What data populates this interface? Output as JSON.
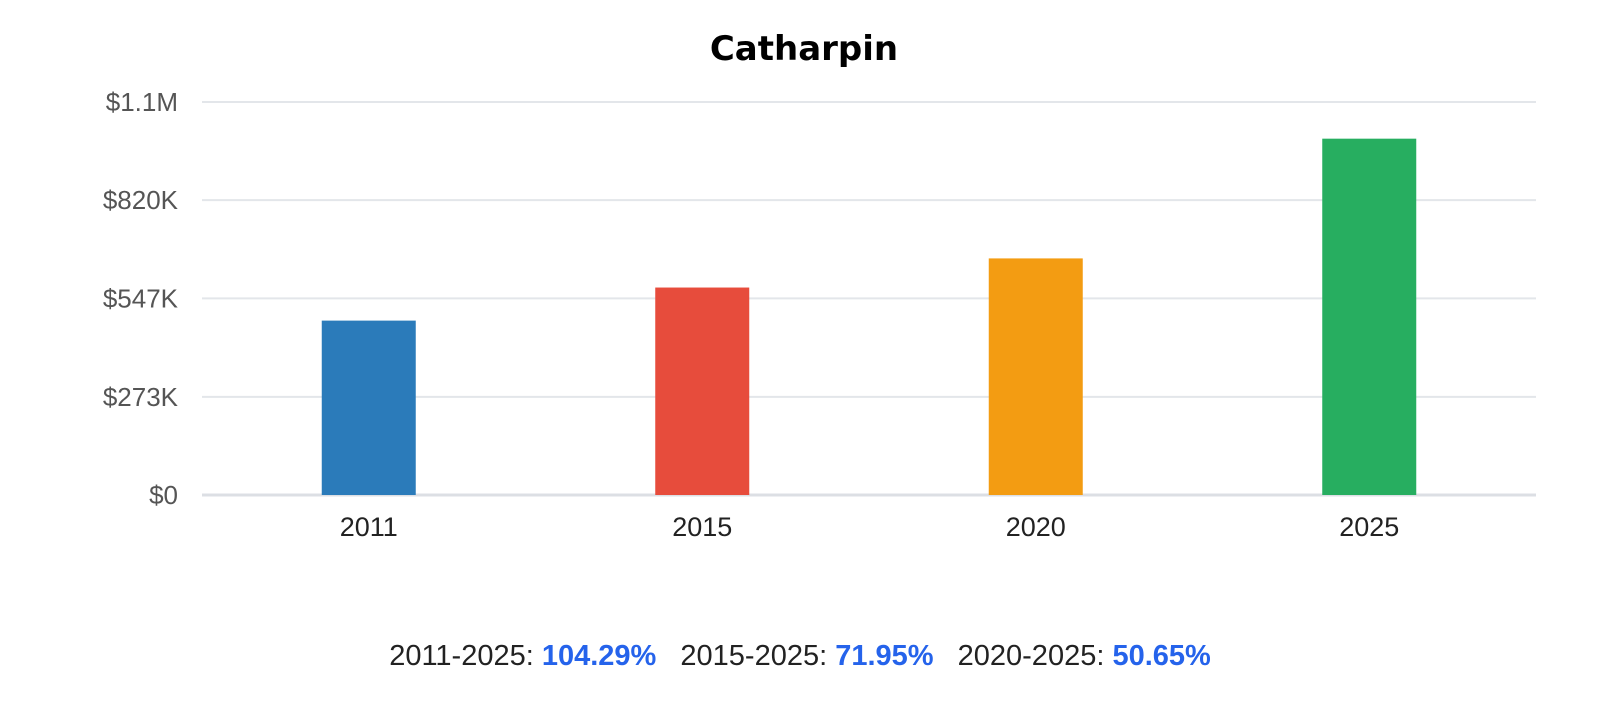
{
  "chart_data": {
    "type": "bar",
    "title": "Catharpin",
    "categories": [
      "2011",
      "2015",
      "2020",
      "2025"
    ],
    "values": [
      485000,
      577000,
      658000,
      991000
    ],
    "colors": [
      "#2b7bba",
      "#e74c3c",
      "#f39c12",
      "#27ae60"
    ],
    "ylim": [
      0,
      1093000
    ],
    "yticks": [
      0,
      273000,
      547000,
      820000,
      1093000
    ],
    "ytick_labels": [
      "$0",
      "$273K",
      "$547K",
      "$820K",
      "$1.1M"
    ],
    "xlabel": "",
    "ylabel": "",
    "grid": true,
    "legend": "none"
  },
  "footer": {
    "value_color": "#2563eb",
    "stats": [
      {
        "label": "2011-2025:",
        "value": "104.29%"
      },
      {
        "label": "2015-2025:",
        "value": "71.95%"
      },
      {
        "label": "2020-2025:",
        "value": "50.65%"
      }
    ]
  }
}
